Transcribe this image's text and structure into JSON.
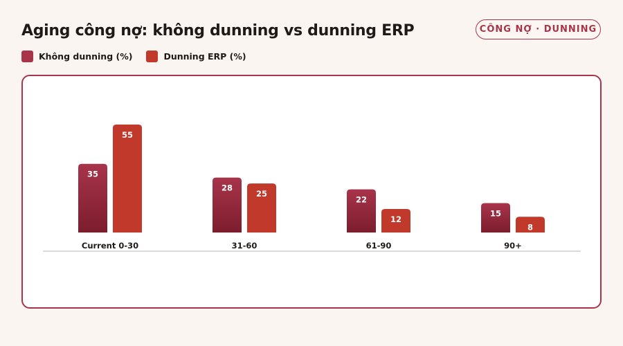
{
  "header": {
    "title": "Aging công nợ: không dunning vs dunning ERP",
    "badge": "CÔNG NỢ · DUNNING"
  },
  "legend": [
    {
      "label": "Không dunning (%)",
      "color": "#a8344a"
    },
    {
      "label": "Dunning ERP (%)",
      "color": "#c0392b"
    }
  ],
  "chart_data": {
    "type": "bar",
    "categories": [
      "Current 0-30",
      "31-60",
      "61-90",
      "90+"
    ],
    "series": [
      {
        "name": "Không dunning (%)",
        "values": [
          35,
          28,
          22,
          15
        ],
        "color": "#a8344a",
        "color_dark": "#7c1d2e"
      },
      {
        "name": "Dunning ERP (%)",
        "values": [
          55,
          25,
          12,
          8
        ],
        "color": "#c0392b"
      }
    ],
    "ylim": [
      0,
      55
    ],
    "grid": false,
    "legend_position": "top-left",
    "data_labels": true
  }
}
